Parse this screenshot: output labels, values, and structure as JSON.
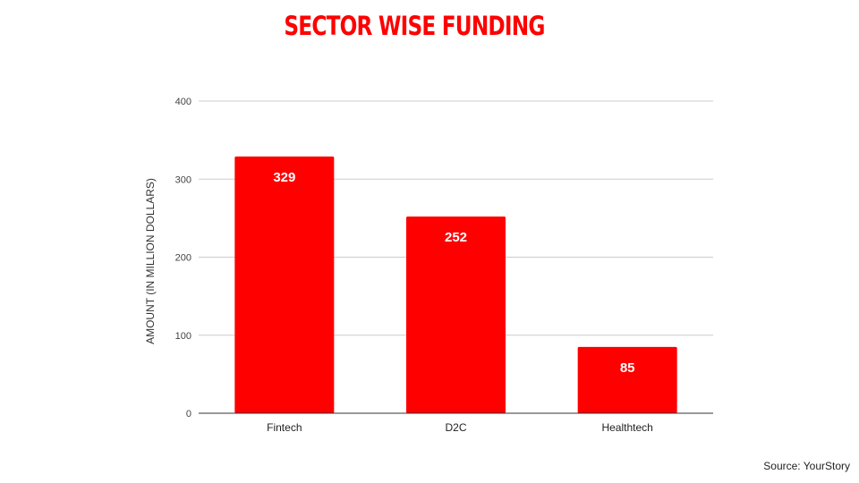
{
  "chart_data": {
    "type": "bar",
    "title": "SECTOR WISE FUNDING",
    "xlabel": "",
    "ylabel": "AMOUNT (IN MILLION DOLLARS)",
    "categories": [
      "Fintech",
      "D2C",
      "Healthtech"
    ],
    "values": [
      329,
      252,
      85
    ],
    "data_labels": [
      "329",
      "252",
      "85"
    ],
    "ylim": [
      0,
      400
    ],
    "yticks": [
      0,
      100,
      200,
      300,
      400
    ],
    "grid": true,
    "legend": "none",
    "bar_color": "#ff0000",
    "title_color": "#ff0000",
    "data_label_color": "#ffffff"
  },
  "footer": {
    "source": "Source: YourStory"
  }
}
